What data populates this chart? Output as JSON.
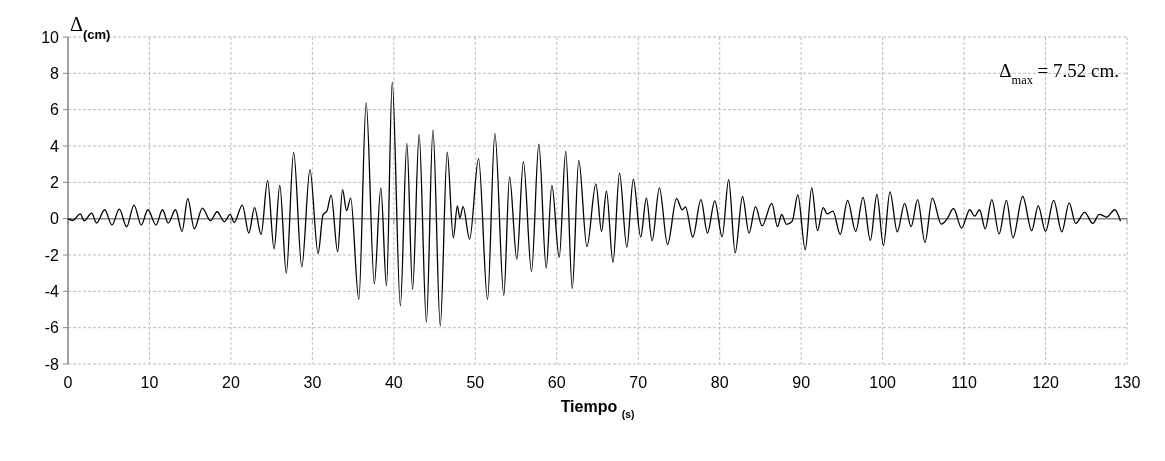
{
  "chart_data": {
    "type": "line",
    "xlabel": "Tiempo $_{(s)}$",
    "ylabel": "Δ$_{(cm)}$",
    "annotations": [
      "Δ$_{max}$ = 7.52 cm."
    ],
    "xlim": [
      0,
      130
    ],
    "ylim": [
      -8,
      10
    ],
    "xticks": [
      0,
      10,
      20,
      30,
      40,
      50,
      60,
      70,
      80,
      90,
      100,
      110,
      120,
      130
    ],
    "yticks": [
      -8,
      -6,
      -4,
      -2,
      0,
      2,
      4,
      6,
      8,
      10
    ],
    "grid": true,
    "marker": "none",
    "line_style": "solid",
    "series": [
      {
        "color": "#000000",
        "x": [
          0,
          0.6,
          1.5,
          2.0,
          2.9,
          3.5,
          4.5,
          5.4,
          6.3,
          7.2,
          8.1,
          9.0,
          9.8,
          10.8,
          11.6,
          12.3,
          13.2,
          14.0,
          14.7,
          15.5,
          16.5,
          17.5,
          18.3,
          19.2,
          19.9,
          20.4,
          21.4,
          22.2,
          22.9,
          23.7,
          24.5,
          25.3,
          26.0,
          26.8,
          27.7,
          28.7,
          29.7,
          30.7,
          31.3,
          31.8,
          32.3,
          33.1,
          33.7,
          34.2,
          34.7,
          35.7,
          36.6,
          37.6,
          38.4,
          39.1,
          39.8,
          40.8,
          41.6,
          42.3,
          43.1,
          44.0,
          44.8,
          45.7,
          46.55,
          47.3,
          47.8,
          48.1,
          48.5,
          49.3,
          50.4,
          51.5,
          52.4,
          53.5,
          54.2,
          55.1,
          55.9,
          56.9,
          57.8,
          58.7,
          59.4,
          60.3,
          61.1,
          61.9,
          62.7,
          63.7,
          64.8,
          65.5,
          66.1,
          66.9,
          67.7,
          68.6,
          69.4,
          70.3,
          71.0,
          71.7,
          72.6,
          73.6,
          74.7,
          75.4,
          75.8,
          76.7,
          77.7,
          78.5,
          79.4,
          80.3,
          81.1,
          81.9,
          82.8,
          83.6,
          84.4,
          85.2,
          86.4,
          87.1,
          87.6,
          88.2,
          88.9,
          89.6,
          90.5,
          91.3,
          92.0,
          92.7,
          93.2,
          93.9,
          94.8,
          95.7,
          96.7,
          97.6,
          98.5,
          99.3,
          100.1,
          100.9,
          101.8,
          102.7,
          103.5,
          104.3,
          105.2,
          106.1,
          107.2,
          107.9,
          108.7,
          109.7,
          110.7,
          111.3,
          111.9,
          112.6,
          113.4,
          114.3,
          115.2,
          116.0,
          117.2,
          118.3,
          119.1,
          120.0,
          121.0,
          122.0,
          122.9,
          123.7,
          124.8,
          125.8,
          126.6,
          127.5,
          128.5,
          129.2
        ],
        "values": [
          0,
          -0.1,
          0.26,
          -0.12,
          0.31,
          -0.24,
          0.49,
          -0.35,
          0.52,
          -0.45,
          0.75,
          -0.35,
          0.49,
          -0.35,
          0.49,
          -0.24,
          0.49,
          -0.7,
          1.1,
          -0.56,
          0.58,
          -0.12,
          0.38,
          -0.17,
          0.24,
          -0.21,
          0.75,
          -0.79,
          0.61,
          -0.87,
          2.09,
          -1.66,
          1.83,
          -3.0,
          3.66,
          -2.65,
          2.7,
          -1.92,
          0.2,
          0.44,
          1.3,
          -1.83,
          1.6,
          0.44,
          1.13,
          -4.45,
          6.37,
          -3.58,
          1.69,
          -3.7,
          7.52,
          -4.8,
          4.15,
          -3.89,
          4.62,
          -5.7,
          4.89,
          -5.9,
          3.66,
          -1.05,
          0.7,
          0.03,
          0.66,
          -1.13,
          3.3,
          -4.45,
          4.68,
          -4.22,
          2.3,
          -2.23,
          3.14,
          -2.9,
          4.1,
          -2.72,
          1.83,
          -2.13,
          3.7,
          -3.84,
          3.21,
          -1.54,
          1.92,
          -0.7,
          1.52,
          -2.41,
          2.5,
          -1.57,
          2.18,
          -1.01,
          1.13,
          -1.22,
          1.69,
          -1.43,
          1.1,
          0.49,
          0.65,
          -1.01,
          1.05,
          -0.79,
          0.98,
          -1.0,
          2.15,
          -1.88,
          1.22,
          -0.79,
          0.66,
          -0.4,
          0.84,
          -0.44,
          0.23,
          -0.31,
          -0.14,
          1.31,
          -1.71,
          1.69,
          -0.66,
          0.61,
          0.26,
          0.42,
          -0.87,
          1.01,
          -0.7,
          1.17,
          -1.19,
          1.33,
          -1.48,
          1.47,
          -0.73,
          0.84,
          -0.44,
          1.05,
          -1.31,
          1.13,
          -0.3,
          -0.03,
          0.56,
          -0.52,
          0.49,
          0.14,
          0.49,
          -0.56,
          1.05,
          -0.84,
          1.01,
          -1.05,
          1.22,
          -0.66,
          0.7,
          -0.7,
          1.01,
          -0.73,
          0.87,
          -0.26,
          0.35,
          -0.26,
          0.24,
          0.09,
          0.49,
          -0.14
        ]
      }
    ]
  }
}
